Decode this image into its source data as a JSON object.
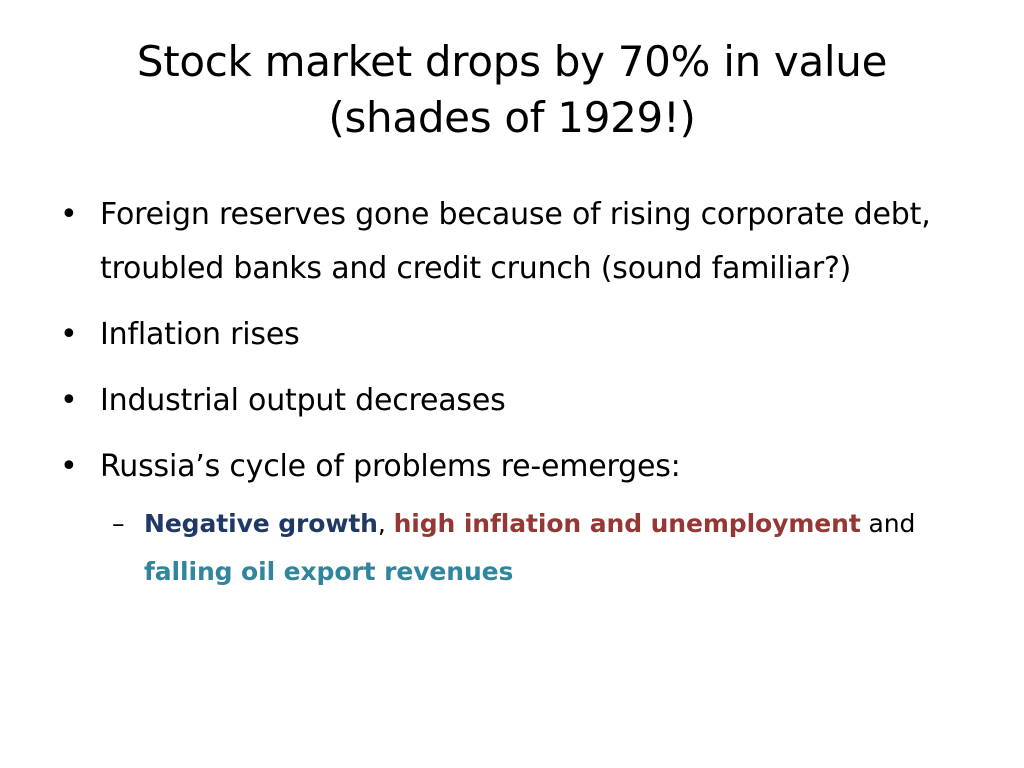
{
  "slide": {
    "title_line1": "Stock market drops by 70% in value",
    "title_line2": "(shades of 1929!)",
    "bullet_marker": "•",
    "sub_marker": "–",
    "bullets": [
      "Foreign reserves gone because of rising corporate debt, troubled banks and credit crunch (sound familiar?)",
      "Inflation rises",
      "Industrial output decreases",
      "Russia’s cycle of problems re-emerges:"
    ],
    "sub_bullet": {
      "part1": "Negative growth",
      "sep1": ", ",
      "part2": "high inflation and unemployment",
      "sep2": " and ",
      "part3": "falling oil export revenues"
    }
  },
  "colors": {
    "negative_growth": "#1f3864",
    "high_inflation": "#953734",
    "falling_oil": "#31859c"
  }
}
